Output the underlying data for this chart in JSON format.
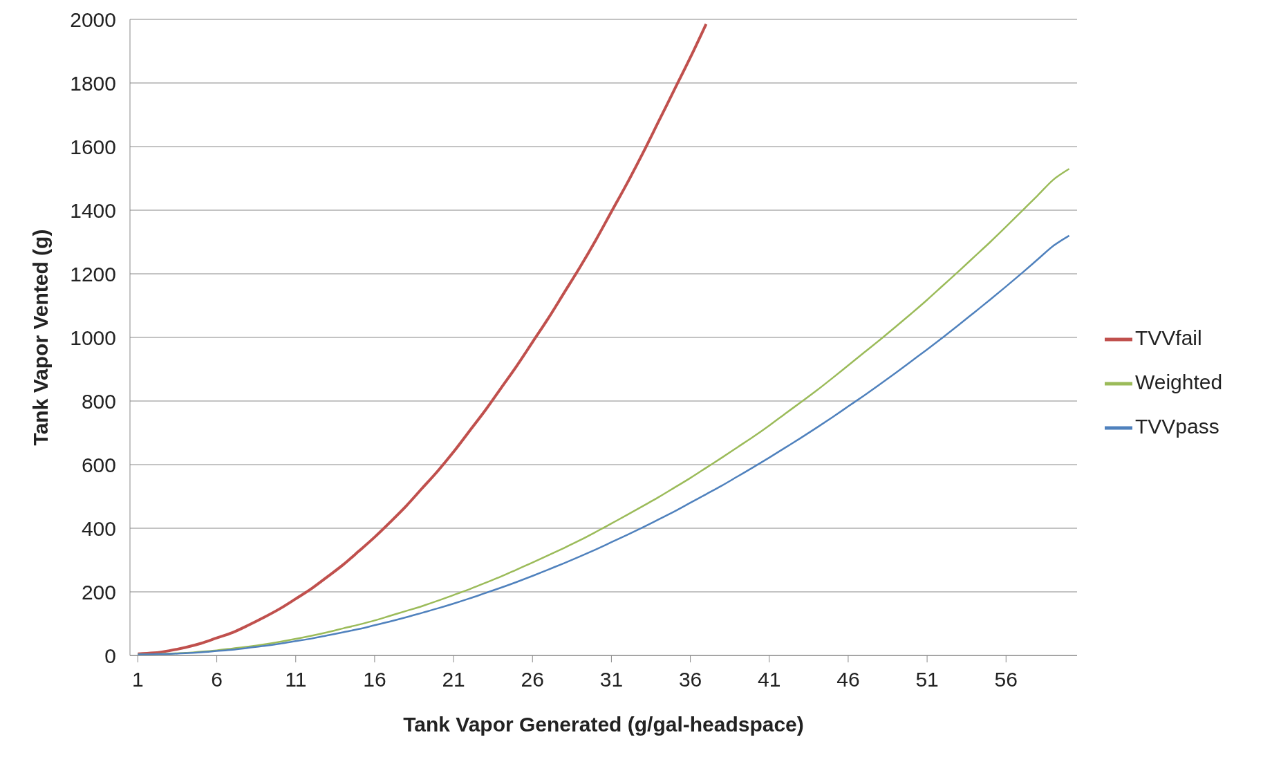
{
  "chart_data": {
    "type": "line",
    "xlabel": "Tank Vapor Generated (g/gal-headspace)",
    "ylabel": "Tank Vapor Vented (g)",
    "x": [
      1,
      2,
      3,
      4,
      5,
      6,
      7,
      8,
      9,
      10,
      11,
      12,
      13,
      14,
      15,
      16,
      17,
      18,
      19,
      20,
      21,
      22,
      23,
      24,
      25,
      26,
      27,
      28,
      29,
      30,
      31,
      32,
      33,
      34,
      35,
      36,
      37,
      38,
      39,
      40,
      41,
      42,
      43,
      44,
      45,
      46,
      47,
      48,
      49,
      50,
      51,
      52,
      53,
      54,
      55,
      56,
      57,
      58,
      59,
      60
    ],
    "xlim": [
      0.5,
      60.5
    ],
    "xticks": [
      1,
      6,
      11,
      16,
      21,
      26,
      31,
      36,
      41,
      46,
      51,
      56
    ],
    "series": [
      {
        "name": "TVVfail",
        "color": "#c0504d",
        "values": [
          5,
          8,
          15,
          25,
          38,
          55,
          72,
          95,
          120,
          147,
          178,
          210,
          247,
          285,
          328,
          372,
          420,
          470,
          525,
          580,
          640,
          705,
          770,
          840,
          910,
          985,
          1060,
          1140,
          1220,
          1305,
          1395,
          1485,
          1580,
          1680,
          1780,
          1880,
          1985,
          null,
          null,
          null,
          null,
          null,
          null,
          null,
          null,
          null,
          null,
          null,
          null,
          null,
          null,
          null,
          null,
          null,
          null,
          null,
          null,
          null,
          null,
          null
        ]
      },
      {
        "name": "Weighted",
        "color": "#9bbb59",
        "values": [
          3,
          4,
          6,
          8,
          12,
          16,
          22,
          28,
          35,
          43,
          52,
          62,
          73,
          85,
          97,
          110,
          125,
          140,
          155,
          172,
          190,
          208,
          228,
          248,
          270,
          292,
          315,
          338,
          362,
          388,
          415,
          442,
          470,
          498,
          528,
          558,
          590,
          622,
          655,
          688,
          723,
          760,
          796,
          833,
          872,
          912,
          952,
          992,
          1033,
          1075,
          1118,
          1163,
          1208,
          1254,
          1300,
          1348,
          1397,
          1446,
          1496,
          1530
        ]
      },
      {
        "name": "TVVpass",
        "color": "#4f81bd",
        "values": [
          3,
          4,
          5,
          7,
          10,
          14,
          18,
          24,
          30,
          37,
          45,
          53,
          63,
          73,
          83,
          95,
          107,
          120,
          134,
          148,
          163,
          179,
          196,
          213,
          231,
          250,
          270,
          290,
          311,
          333,
          356,
          379,
          403,
          428,
          453,
          480,
          507,
          534,
          563,
          592,
          622,
          653,
          684,
          716,
          749,
          783,
          817,
          852,
          888,
          925,
          962,
          1000,
          1039,
          1079,
          1119,
          1160,
          1202,
          1245,
          1288,
          1320
        ]
      }
    ],
    "ylim": [
      0,
      2000
    ],
    "yticks": [
      0,
      200,
      400,
      600,
      800,
      1000,
      1200,
      1400,
      1600,
      1800,
      2000
    ],
    "grid": "y",
    "legend": "right",
    "marker": "none",
    "line_style": "solid"
  }
}
